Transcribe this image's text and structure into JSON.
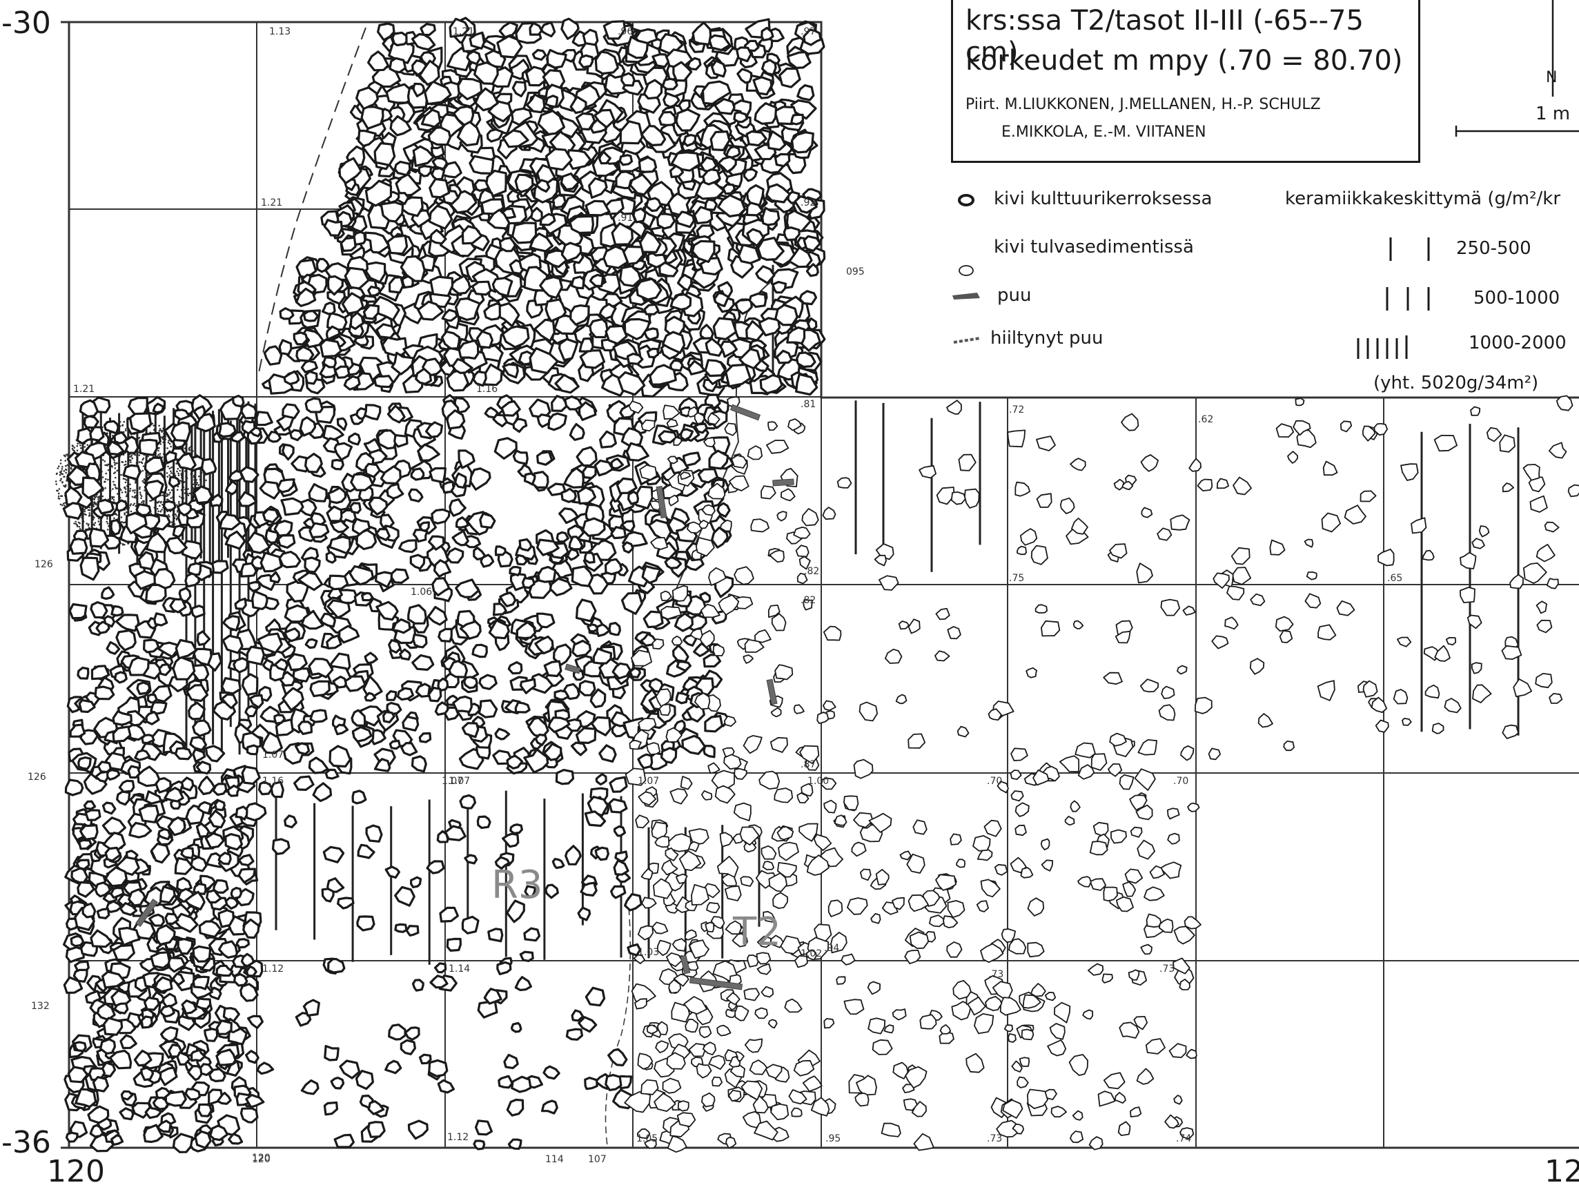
{
  "map": {
    "y_top": "-30",
    "y_bottom": "-36",
    "x_left": "120",
    "x_right": "12",
    "x_left_small": "120"
  },
  "title_box": {
    "line1": "krs:ssa T2/tasot II-III (-65--75 cm)",
    "line2": "korkeudet m mpy (.70 = 80.70)",
    "line3": "Piirt. M.LIUKKONEN, J.MELLANEN, H.-P. SCHULZ",
    "line4": "E.MIKKOLA, E.-M. VIITANEN"
  },
  "scale_bar": {
    "label": "1 m",
    "north_symbol": "N"
  },
  "legend": {
    "stone_cultural": "kivi kulttuurikerroksessa",
    "stone_flood": "kivi tulvasedimentissä",
    "wood": "puu",
    "charred_wood": "hiiltynyt puu",
    "ceramics_title": "keramiikkakeskittymä (g/m²/kr",
    "range1": "250-500",
    "range2": "500-1000",
    "range3": "1000-2000",
    "total": "(yht. 5020g/34m²)"
  },
  "features": {
    "r3": "R3",
    "t2": "T2"
  },
  "elevations": [
    {
      "id": "e1",
      "text": "1.21"
    },
    {
      "id": "e2",
      "text": "1.13"
    },
    {
      "id": "e3",
      "text": ".96"
    },
    {
      "id": ".97",
      "text": ".97"
    },
    {
      "id": "e5",
      "text": "1.21"
    },
    {
      "id": "e6",
      "text": ".91"
    },
    {
      "id": "e7",
      "text": ".92"
    },
    {
      "id": "e8",
      "text": "1.21"
    },
    {
      "id": "e9",
      "text": "1.16"
    },
    {
      "id": "e10",
      "text": ".81"
    },
    {
      "id": "e11",
      "text": ".82"
    },
    {
      "id": "e12",
      "text": "1.06"
    },
    {
      "id": "e13",
      "text": "1.07"
    },
    {
      "id": "e14",
      "text": ".82"
    },
    {
      "id": "e15",
      "text": ".75"
    },
    {
      "id": "e16",
      "text": ".65"
    },
    {
      "id": "e17",
      "text": "1.07"
    },
    {
      "id": "e18",
      "text": "1.16"
    },
    {
      "id": "e19",
      "text": "1.07"
    },
    {
      "id": "e20",
      "text": "1.07"
    },
    {
      "id": "e21",
      "text": ".87"
    },
    {
      "id": "e22",
      "text": "1.00"
    },
    {
      "id": "e23",
      "text": ".70"
    },
    {
      "id": "e24",
      "text": ".70"
    },
    {
      "id": "e25",
      "text": "1.12"
    },
    {
      "id": "e26",
      "text": "1.14"
    },
    {
      "id": "e27",
      "text": "1.03"
    },
    {
      "id": "e28",
      "text": "1.02"
    },
    {
      "id": "e29",
      "text": ".94"
    },
    {
      "id": "e30",
      "text": ".73"
    },
    {
      "id": "e31",
      "text": ".73"
    },
    {
      "id": "e32",
      "text": "1.12"
    },
    {
      "id": "e33",
      "text": "1.05"
    },
    {
      "id": "e34",
      "text": ".95"
    },
    {
      "id": "e35",
      "text": ".73"
    },
    {
      "id": "e36",
      "text": ".74"
    },
    {
      "id": "e37",
      "text": ".72"
    },
    {
      "id": "e38",
      "text": ".62"
    },
    {
      "id": "e39",
      "text": "095"
    },
    {
      "id": "e40",
      "text": "126"
    },
    {
      "id": "e41",
      "text": "126"
    },
    {
      "id": "e42",
      "text": "132"
    },
    {
      "id": "e43",
      "text": "120"
    },
    {
      "id": "e44",
      "text": "114"
    },
    {
      "id": "e45",
      "text": "107"
    }
  ],
  "colors": {
    "ink": "#1a1a1a",
    "wood": "#6a6a6a",
    "label_grey": "#8a8a8a",
    "grid": "#333333"
  }
}
